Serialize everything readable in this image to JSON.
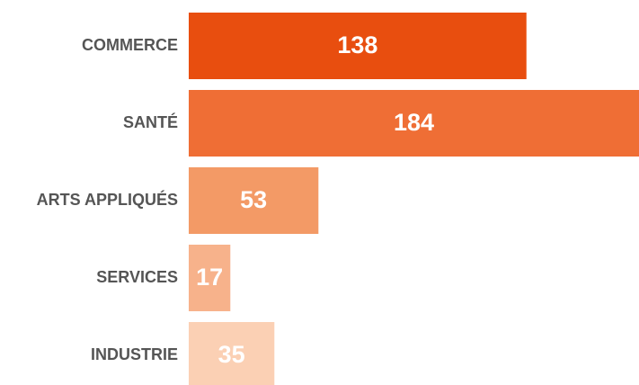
{
  "chart_data": {
    "type": "bar",
    "orientation": "horizontal",
    "categories": [
      "COMMERCE",
      "SANTÉ",
      "ARTS APPLIQUÉS",
      "SERVICES",
      "INDUSTRIE"
    ],
    "values": [
      138,
      184,
      53,
      17,
      35
    ],
    "colors": [
      "#e84e0f",
      "#ef6e35",
      "#f39a66",
      "#f7b28b",
      "#fbd0b4"
    ]
  }
}
